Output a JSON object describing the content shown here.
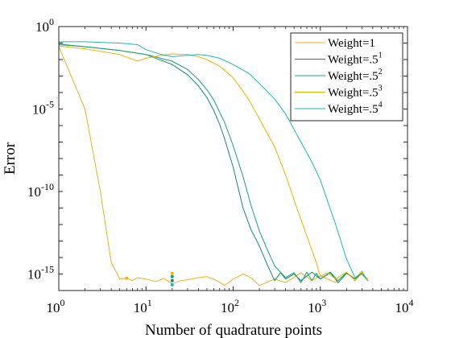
{
  "chart_data": {
    "type": "line",
    "title": "",
    "xlabel": "Number of quadrature points",
    "ylabel": "Error",
    "xscale": "log",
    "yscale": "log",
    "xlim": [
      1,
      10000
    ],
    "ylim": [
      1e-16,
      1
    ],
    "grid": false,
    "legend_position": "top-right",
    "x_ticks": [
      {
        "value": 1,
        "base": "10",
        "exp": "0"
      },
      {
        "value": 10,
        "base": "10",
        "exp": "1"
      },
      {
        "value": 100,
        "base": "10",
        "exp": "2"
      },
      {
        "value": 1000,
        "base": "10",
        "exp": "3"
      },
      {
        "value": 10000,
        "base": "10",
        "exp": "4"
      }
    ],
    "y_ticks": [
      {
        "value": 1,
        "base": "10",
        "exp": "0"
      },
      {
        "value": 1e-05,
        "base": "10",
        "exp": "-5"
      },
      {
        "value": 1e-10,
        "base": "10",
        "exp": "-10"
      },
      {
        "value": 1e-15,
        "base": "10",
        "exp": "-15"
      }
    ],
    "series": [
      {
        "name": "Weight=1",
        "legend_base": "Weight=1",
        "legend_sup": "",
        "color": "#EDB120",
        "x": [
          1,
          2,
          3,
          4,
          5,
          6,
          7,
          8,
          10,
          13,
          16,
          20,
          25,
          30,
          40,
          50,
          65,
          80,
          100,
          130,
          160,
          200,
          300,
          400,
          600,
          800,
          1000,
          1500,
          2000,
          2500,
          3000,
          3500
        ],
        "y": [
          0.06,
          1e-05,
          1e-10,
          5e-15,
          5e-16,
          5.5e-16,
          4e-16,
          6e-16,
          5e-16,
          3.5e-16,
          5.5e-16,
          2.5e-16,
          4e-16,
          4.5e-16,
          6e-16,
          7e-16,
          4e-16,
          2e-16,
          5e-16,
          1e-15,
          6e-16,
          2e-16,
          5e-16,
          3e-16,
          1.2e-15,
          4e-16,
          8e-16,
          3e-16,
          1.2e-15,
          5e-16,
          1.5e-15,
          4e-16
        ]
      },
      {
        "name": "Weight=.5^1",
        "legend_base": "Weight=.5",
        "legend_sup": "1",
        "color": "#138A6A",
        "x": [
          1,
          2,
          5,
          10,
          20,
          30,
          40,
          50,
          60,
          70,
          80,
          100,
          130,
          160,
          200,
          250,
          300,
          350,
          400,
          500,
          600,
          800,
          1000,
          1300,
          1600,
          2000,
          2500,
          3000,
          3500
        ],
        "y": [
          0.085,
          0.06,
          0.035,
          0.02,
          0.005,
          0.0012,
          0.00025,
          5e-05,
          8e-06,
          1.2e-06,
          1.5e-07,
          3e-09,
          1e-11,
          5e-13,
          5e-14,
          3e-15,
          4e-16,
          1.2e-15,
          5e-16,
          1e-15,
          4e-16,
          1.3e-15,
          5e-16,
          1.2e-15,
          3e-16,
          1.1e-15,
          5e-16,
          1.2e-15,
          4e-16
        ]
      },
      {
        "name": "Weight=.5^2",
        "legend_base": "Weight=.5",
        "legend_sup": "2",
        "color": "#1AA06E",
        "x": [
          1,
          2,
          5,
          10,
          20,
          30,
          40,
          50,
          60,
          80,
          100,
          130,
          160,
          200,
          250,
          300,
          400,
          500,
          600,
          700,
          800,
          900,
          1000,
          1300,
          1600,
          2000,
          2500,
          3000,
          3500
        ],
        "y": [
          0.08,
          0.06,
          0.035,
          0.02,
          0.008,
          0.0025,
          0.0006,
          0.00015,
          3.5e-05,
          1.5e-06,
          6e-08,
          8e-10,
          1.5e-11,
          4e-13,
          2.5e-14,
          3e-15,
          6e-16,
          1.2e-15,
          3e-16,
          1.3e-15,
          4e-16,
          1.1e-15,
          5e-16,
          1.3e-15,
          4e-16,
          1.2e-15,
          5e-16,
          1e-15,
          4e-16
        ]
      },
      {
        "name": "Weight=.5^3",
        "legend_base": "Weight=.5",
        "legend_sup": "3",
        "color": "#E8B500",
        "x": [
          1,
          2,
          5,
          8,
          10,
          15,
          20,
          30,
          40,
          50,
          70,
          100,
          150,
          200,
          300,
          400,
          500,
          700,
          900,
          1000,
          1200,
          1500,
          2000,
          2500,
          3000,
          3500
        ],
        "y": [
          0.065,
          0.045,
          0.02,
          0.008,
          0.012,
          0.018,
          0.022,
          0.02,
          0.015,
          0.01,
          0.004,
          0.0008,
          4e-05,
          2.5e-06,
          5e-08,
          1e-09,
          3e-11,
          2e-13,
          5e-15,
          7e-16,
          1.2e-15,
          5e-16,
          1.3e-15,
          4e-16,
          1.1e-15,
          5e-16
        ]
      },
      {
        "name": "Weight=.5^4",
        "legend_base": "Weight=.5",
        "legend_sup": "4",
        "color": "#22B5B5",
        "x": [
          1,
          2,
          5,
          8,
          10,
          15,
          20,
          30,
          40,
          50,
          70,
          100,
          150,
          200,
          300,
          400,
          600,
          800,
          1000,
          1200,
          1500,
          2000,
          2500,
          3000,
          3500
        ],
        "y": [
          0.12,
          0.12,
          0.1,
          0.08,
          0.04,
          0.02,
          0.015,
          0.018,
          0.02,
          0.018,
          0.012,
          0.005,
          0.0015,
          0.00035,
          4e-05,
          5e-06,
          1e-07,
          6e-09,
          5e-10,
          3e-11,
          1e-12,
          8e-15,
          6e-16,
          1.2e-15,
          4e-16
        ]
      }
    ],
    "markers": [
      {
        "x": 6,
        "y": 5.5e-16,
        "color": "#EDB120"
      },
      {
        "x": 20,
        "y": 1.1e-15,
        "color": "#EDB120"
      },
      {
        "x": 20,
        "y": 7e-16,
        "color": "#1AA06E"
      },
      {
        "x": 20,
        "y": 4e-16,
        "color": "#138A6A"
      },
      {
        "x": 20,
        "y": 2.2e-16,
        "color": "#22B5B5"
      }
    ]
  }
}
